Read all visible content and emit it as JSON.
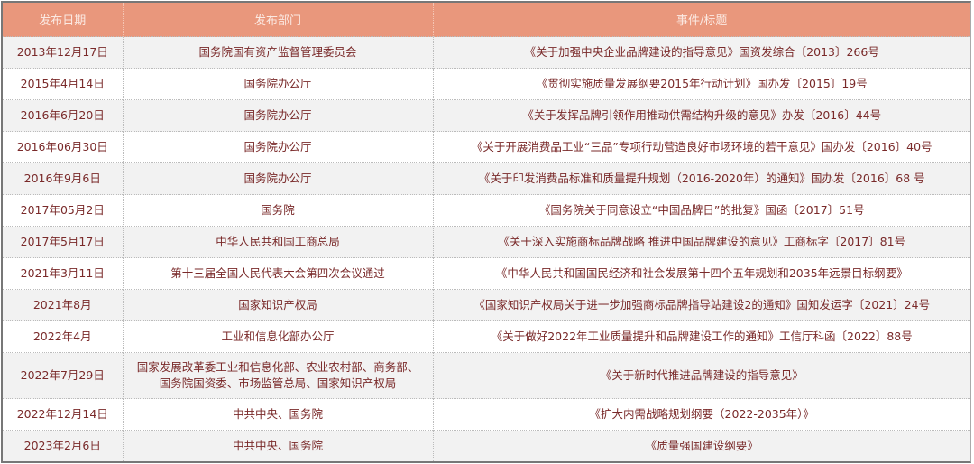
{
  "header": {
    "date": "发布日期",
    "department": "发布部门",
    "event": "事件/标题"
  },
  "colors": {
    "header_bg": "#e9977c",
    "text": "#7a2a2a",
    "alt_row": "#f2f2f2"
  },
  "rows": [
    {
      "date": "2013年12月17日",
      "department": "国务院国有资产监督管理委员会",
      "event": "《关于加强中央企业品牌建设的指导意见》国资发综合〔2013〕266号"
    },
    {
      "date": "2015年4月14日",
      "department": "国务院办公厅",
      "event": "《贯彻实施质量发展纲要2015年行动计划》国办发〔2015〕19号"
    },
    {
      "date": "2016年6月20日",
      "department": "国务院办公厅",
      "event": "《关于发挥品牌引领作用推动供需结构升级的意见》办发〔2016〕44号"
    },
    {
      "date": "2016年06月30日",
      "department": "国务院办公厅",
      "event": "《关于开展消费品工业“三品”专项行动营造良好市场环境的若干意见》国办发〔2016〕40号"
    },
    {
      "date": "2016年9月6日",
      "department": "国务院办公厅",
      "event": "《关于印发消费品标准和质量提升规划（2016-2020年）的通知》国办发〔2016〕68 号"
    },
    {
      "date": "2017年05月2日",
      "department": "国务院",
      "event": "《国务院关于同意设立“中国品牌日”的批复》国函〔2017〕51号"
    },
    {
      "date": "2017年5月17日",
      "department": "中华人民共和国工商总局",
      "event": "《关于深入实施商标品牌战略 推进中国品牌建设的意见》工商标字〔2017〕81号"
    },
    {
      "date": "2021年3月11日",
      "department": "第十三届全国人民代表大会第四次会议通过",
      "event": "《中华人民共和国国民经济和社会发展第十四个五年规划和2035年远景目标纲要》"
    },
    {
      "date": "2021年8月",
      "department": "国家知识产权局",
      "event": "《国家知识产权局关于进一步加强商标品牌指导站建设2的通知》国知发运字〔2021〕24号"
    },
    {
      "date": "2022年4月",
      "department": "工业和信息化部办公厅",
      "event": "《关于做好2022年工业质量提升和品牌建设工作的通知》工信厅科函〔2022〕88号"
    },
    {
      "date": "2022年7月29日",
      "department": "国家发展改革委工业和信息化部、农业农村部、商务部、国务院国资委、市场监管总局、国家知识产权局",
      "event": "《关于新时代推进品牌建设的指导意见》"
    },
    {
      "date": "2022年12月14日",
      "department": "中共中央、国务院",
      "event": "《扩大内需战略规划纲要（2022-2035年）》"
    },
    {
      "date": "2023年2月6日",
      "department": "中共中央、国务院",
      "event": "《质量强国建设纲要》"
    }
  ]
}
